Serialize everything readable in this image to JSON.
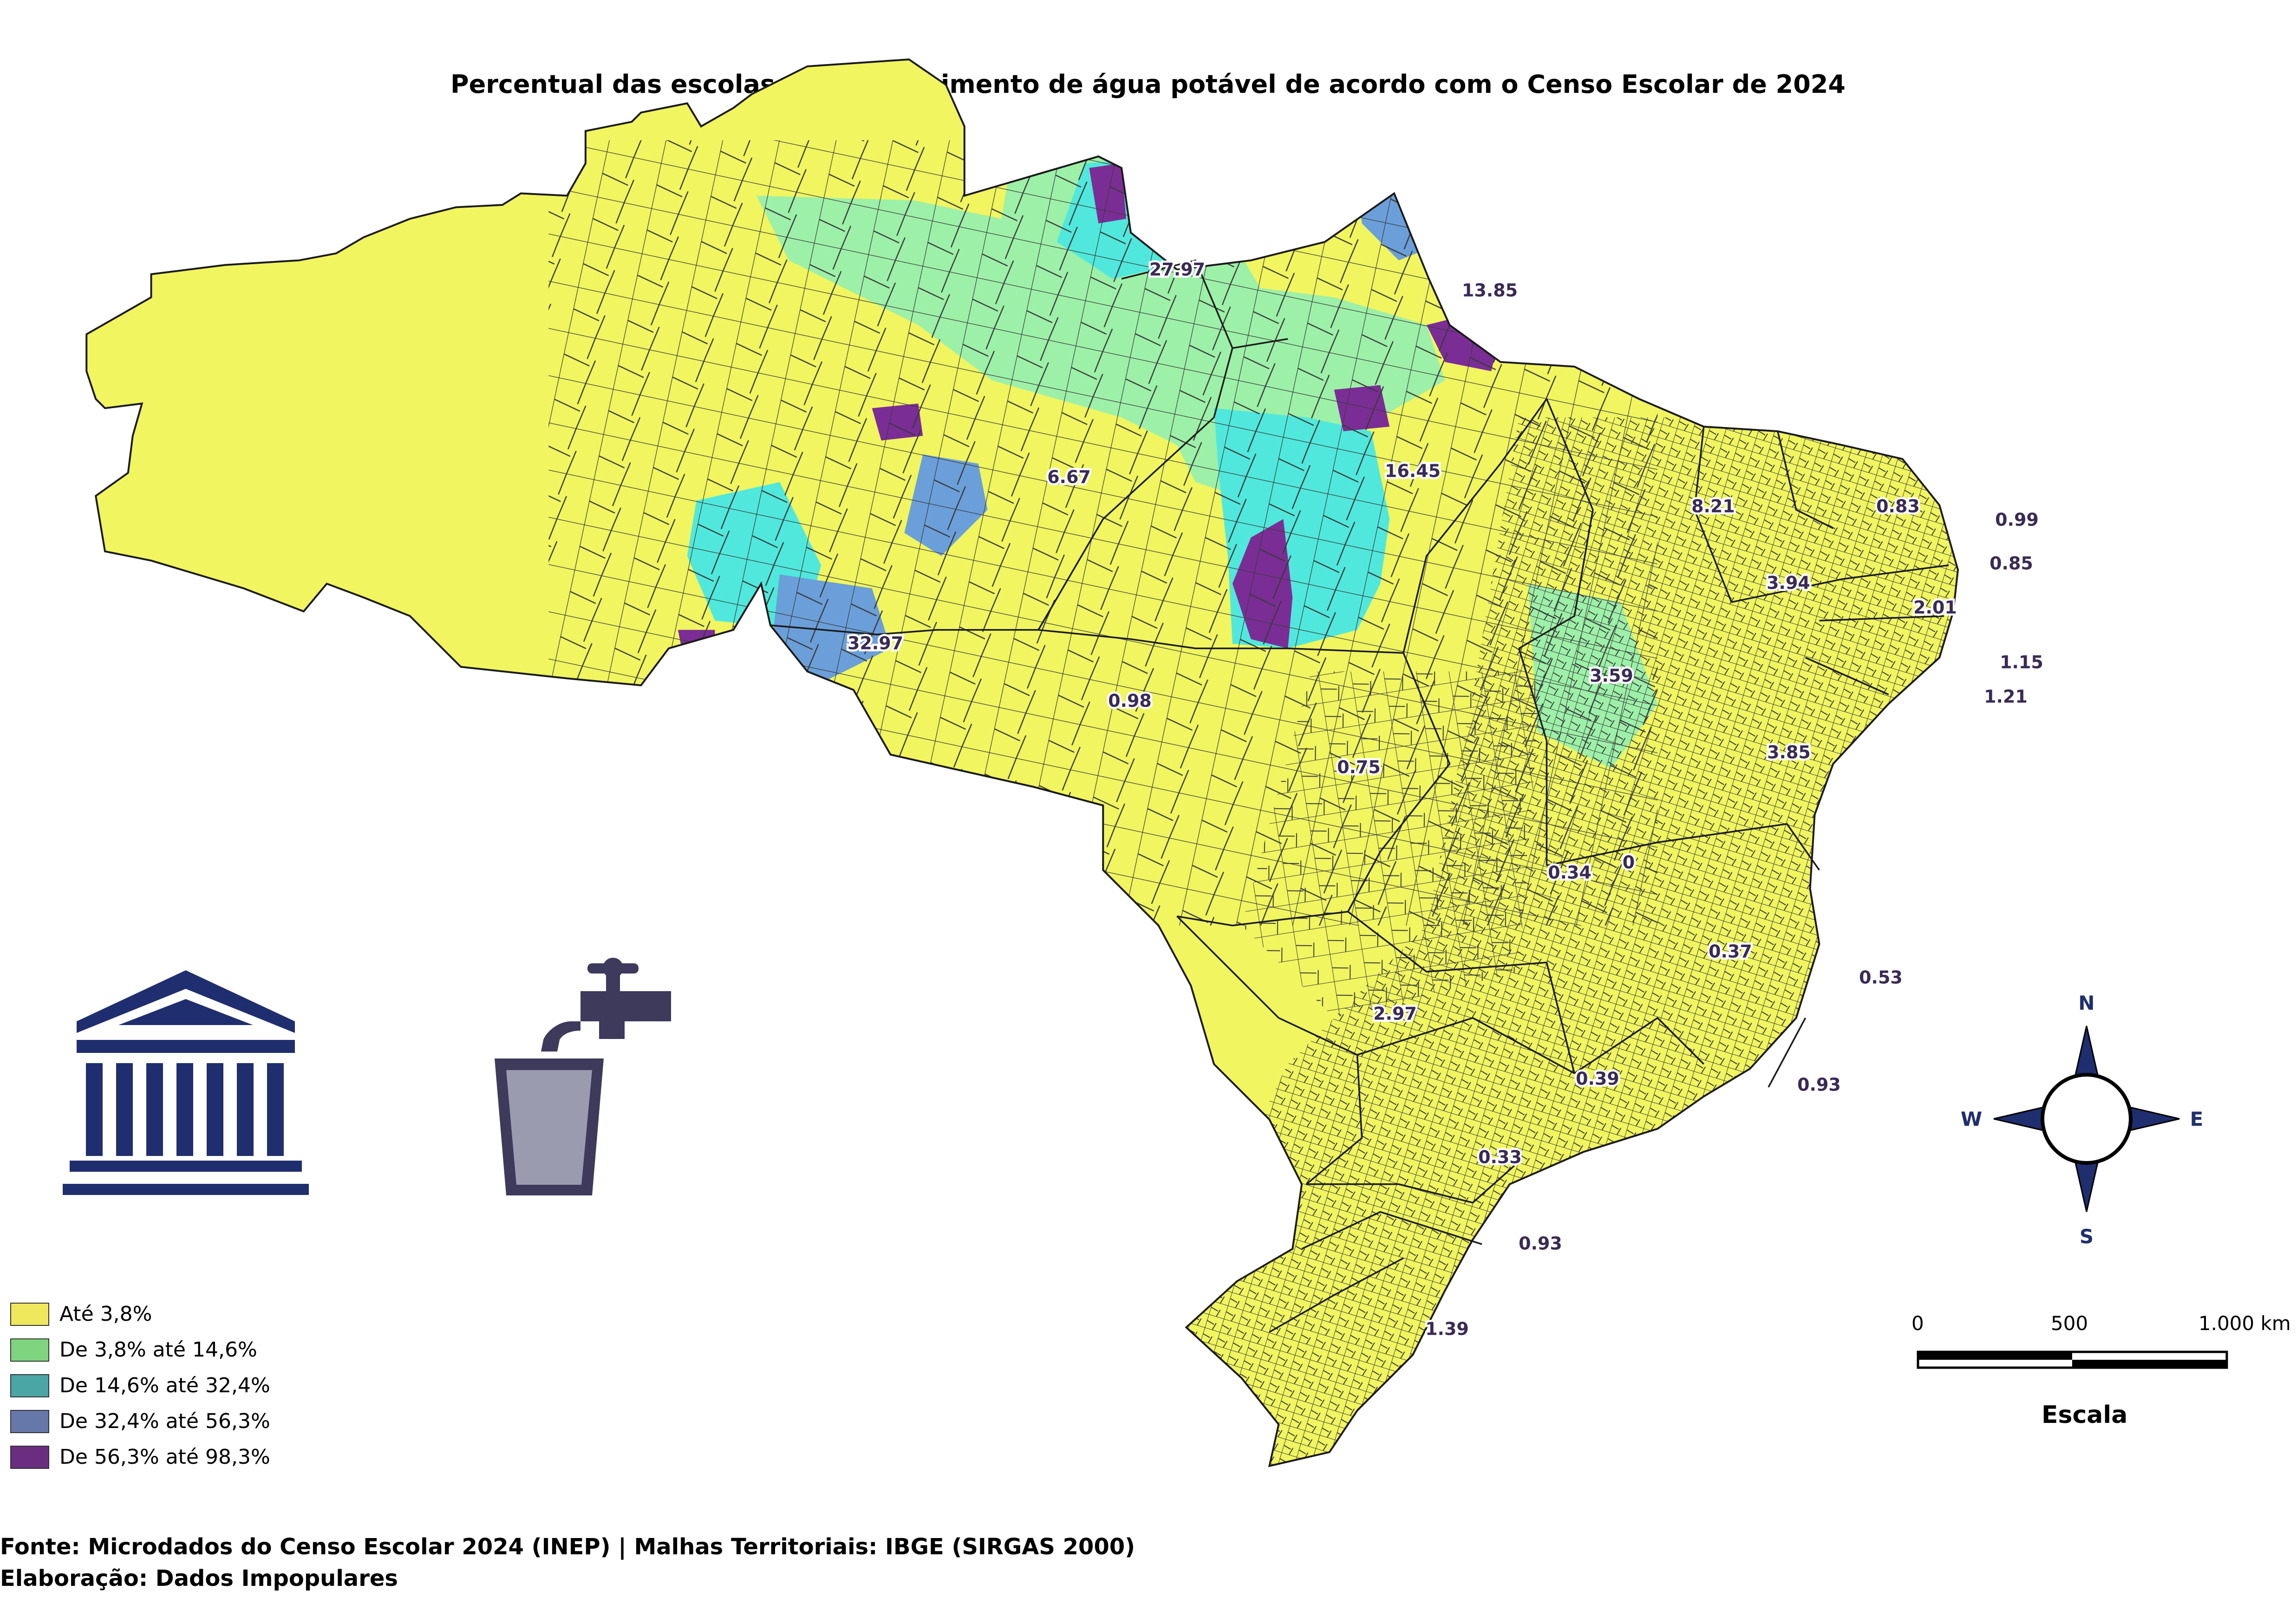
{
  "title": "Percentual das escolas sem fornecimento de água potável de acordo com o Censo Escolar de 2024",
  "colors": {
    "class1": "#f0f560",
    "class2": "#9df0a8",
    "class3": "#50e8dc",
    "class4": "#6b9fd9",
    "class5": "#7b2d96",
    "border": "#3a3a3a",
    "icon_navy": "#1f2e6e",
    "icon_cup_fill": "#9b9bb0"
  },
  "legend": {
    "items": [
      {
        "label": "Até 3,8%",
        "color": "#f0e85c"
      },
      {
        "label": "De 3,8% até 14,6%",
        "color": "#7fd47f"
      },
      {
        "label": "De 14,6% até 32,4%",
        "color": "#4aa5a5"
      },
      {
        "label": "De 32,4% até 56,3%",
        "color": "#6677aa"
      },
      {
        "label": "De 56,3% até 98,3%",
        "color": "#6a2d7f"
      }
    ]
  },
  "state_values": [
    {
      "state": "RR",
      "value": "27.97"
    },
    {
      "state": "AP",
      "value": "13.85"
    },
    {
      "state": "AM",
      "value": "6.67"
    },
    {
      "state": "PA",
      "value": "16.45"
    },
    {
      "state": "AC",
      "value": "32.97"
    },
    {
      "state": "RO",
      "value": "0.98"
    },
    {
      "state": "MT",
      "value": "0.75"
    },
    {
      "state": "MA",
      "value": "8.21"
    },
    {
      "state": "CE",
      "value": "0.83"
    },
    {
      "state": "RN",
      "value": "0.99"
    },
    {
      "state": "PB",
      "value": "0.85"
    },
    {
      "state": "PI",
      "value": "3.94"
    },
    {
      "state": "PE",
      "value": "2.01"
    },
    {
      "state": "AL",
      "value": "1.15"
    },
    {
      "state": "SE",
      "value": "1.21"
    },
    {
      "state": "TO",
      "value": "3.59"
    },
    {
      "state": "BA",
      "value": "3.85"
    },
    {
      "state": "GO",
      "value": "0.34"
    },
    {
      "state": "DF",
      "value": "0"
    },
    {
      "state": "MG",
      "value": "0.37"
    },
    {
      "state": "ES",
      "value": "0.53"
    },
    {
      "state": "MS",
      "value": "2.97"
    },
    {
      "state": "SP",
      "value": "0.39"
    },
    {
      "state": "RJ",
      "value": "0.93"
    },
    {
      "state": "PR",
      "value": "0.33"
    },
    {
      "state": "SC",
      "value": "0.93"
    },
    {
      "state": "RS",
      "value": "1.39"
    }
  ],
  "compass": {
    "n": "N",
    "s": "S",
    "e": "E",
    "w": "W"
  },
  "scale": {
    "ticks": [
      "0",
      "500",
      "1.000 km"
    ],
    "title": "Escala"
  },
  "icons": [
    "building-icon",
    "water-tap-icon",
    "water-cup-icon",
    "compass-rose-icon"
  ],
  "footer": {
    "source": "Fonte: Microdados do Censo Escolar 2024 (INEP) | Malhas Territoriais: IBGE (SIRGAS 2000)",
    "credit": "Elaboração: Dados Impopulares"
  }
}
